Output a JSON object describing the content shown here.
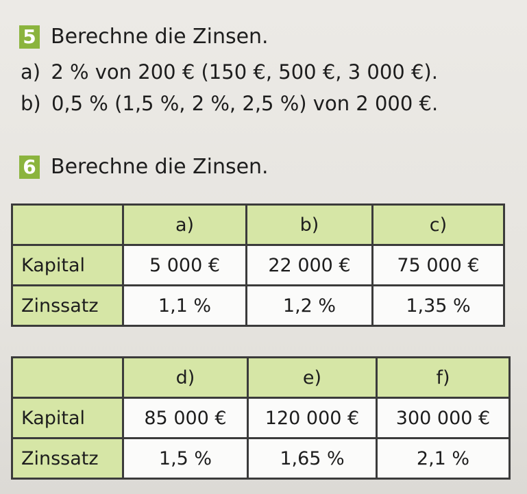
{
  "task5": {
    "number": "5",
    "title": "Berechne die Zinsen.",
    "a": {
      "label": "a)",
      "text": "2 % von 200 € (150 €, 500 €, 3 000 €)."
    },
    "b": {
      "label": "b)",
      "text": "0,5 % (1,5 %, 2 %, 2,5 %) von 2 000 €."
    }
  },
  "task6": {
    "number": "6",
    "title": "Berechne die Zinsen.",
    "table1": {
      "columns": [
        "a)",
        "b)",
        "c)"
      ],
      "rows": [
        {
          "label": "Kapital",
          "cells": [
            "5 000 €",
            "22 000 €",
            "75 000 €"
          ]
        },
        {
          "label": "Zinssatz",
          "cells": [
            "1,1 %",
            "1,2 %",
            "1,35 %"
          ]
        }
      ]
    },
    "table2": {
      "columns": [
        "d)",
        "e)",
        "f)"
      ],
      "rows": [
        {
          "label": "Kapital",
          "cells": [
            "85 000 €",
            "120 000 €",
            "300 000 €"
          ]
        },
        {
          "label": "Zinssatz",
          "cells": [
            "1,5 %",
            "1,65 %",
            "2,1 %"
          ]
        }
      ]
    }
  },
  "colors": {
    "badge": "#8bb43e",
    "header_fill": "#d6e6a6",
    "border": "#3b3b3b"
  }
}
